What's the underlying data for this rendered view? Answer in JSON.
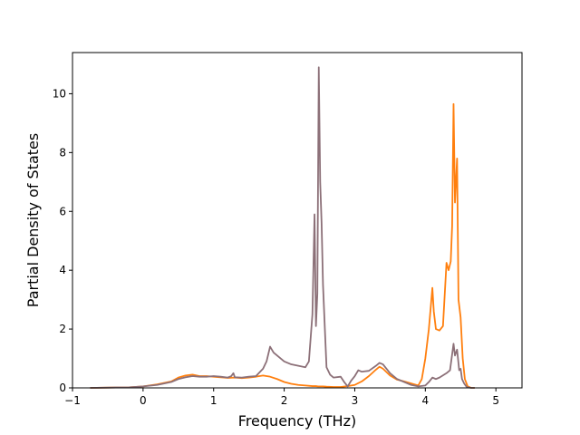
{
  "chart_data": {
    "type": "line",
    "title": "",
    "xlabel": "Frequency (THz)",
    "ylabel": "Partial Density of States",
    "xlim": [
      -1,
      5.37
    ],
    "ylim": [
      0,
      11.4
    ],
    "xticks": [
      -1,
      0,
      1,
      2,
      3,
      4,
      5
    ],
    "yticks": [
      0,
      2,
      4,
      6,
      8,
      10
    ],
    "grid": false,
    "legend": "none",
    "series": [
      {
        "color": "#ff7f0e",
        "x": [
          -0.75,
          -0.2,
          0.0,
          0.2,
          0.4,
          0.5,
          0.6,
          0.7,
          0.8,
          0.9,
          1.0,
          1.1,
          1.2,
          1.3,
          1.4,
          1.5,
          1.6,
          1.7,
          1.8,
          1.9,
          2.0,
          2.1,
          2.2,
          2.3,
          2.4,
          2.45,
          2.48,
          2.5,
          2.52,
          2.55,
          2.6,
          2.7,
          2.8,
          2.9,
          3.0,
          3.1,
          3.2,
          3.3,
          3.35,
          3.4,
          3.5,
          3.6,
          3.7,
          3.8,
          3.9,
          3.95,
          4.0,
          4.05,
          4.1,
          4.12,
          4.15,
          4.2,
          4.25,
          4.3,
          4.33,
          4.36,
          4.38,
          4.4,
          4.42,
          4.45,
          4.47,
          4.5,
          4.53,
          4.56,
          4.6,
          4.65,
          4.7
        ],
        "y": [
          0.0,
          0.02,
          0.05,
          0.12,
          0.22,
          0.35,
          0.42,
          0.45,
          0.4,
          0.4,
          0.38,
          0.36,
          0.34,
          0.35,
          0.33,
          0.35,
          0.38,
          0.42,
          0.38,
          0.3,
          0.2,
          0.14,
          0.1,
          0.08,
          0.06,
          0.06,
          0.05,
          0.05,
          0.05,
          0.05,
          0.04,
          0.03,
          0.03,
          0.06,
          0.1,
          0.22,
          0.4,
          0.62,
          0.72,
          0.65,
          0.42,
          0.28,
          0.22,
          0.15,
          0.08,
          0.3,
          1.0,
          2.0,
          3.4,
          2.6,
          2.0,
          1.95,
          2.1,
          4.25,
          4.0,
          4.3,
          5.5,
          9.65,
          6.3,
          7.8,
          3.0,
          2.4,
          1.0,
          0.3,
          0.05,
          0.0,
          0.0
        ]
      },
      {
        "color": "#8c7078",
        "x": [
          -0.75,
          -0.2,
          0.0,
          0.2,
          0.4,
          0.5,
          0.6,
          0.7,
          0.8,
          0.9,
          1.0,
          1.1,
          1.2,
          1.25,
          1.28,
          1.3,
          1.4,
          1.5,
          1.6,
          1.7,
          1.75,
          1.8,
          1.85,
          1.9,
          2.0,
          2.1,
          2.2,
          2.3,
          2.35,
          2.4,
          2.43,
          2.45,
          2.47,
          2.49,
          2.51,
          2.53,
          2.55,
          2.58,
          2.6,
          2.63,
          2.65,
          2.7,
          2.8,
          2.85,
          2.9,
          2.95,
          3.0,
          3.05,
          3.1,
          3.2,
          3.3,
          3.35,
          3.4,
          3.5,
          3.6,
          3.7,
          3.8,
          3.9,
          4.0,
          4.05,
          4.1,
          4.15,
          4.2,
          4.3,
          4.35,
          4.4,
          4.42,
          4.45,
          4.48,
          4.5,
          4.52,
          4.55,
          4.58,
          4.6,
          4.65,
          4.7
        ],
        "y": [
          0.0,
          0.02,
          0.05,
          0.1,
          0.2,
          0.3,
          0.36,
          0.4,
          0.38,
          0.38,
          0.4,
          0.38,
          0.35,
          0.4,
          0.5,
          0.36,
          0.35,
          0.38,
          0.4,
          0.65,
          0.9,
          1.4,
          1.2,
          1.1,
          0.9,
          0.8,
          0.75,
          0.7,
          0.9,
          2.5,
          5.9,
          2.1,
          3.2,
          10.9,
          7.0,
          5.6,
          3.5,
          1.8,
          0.7,
          0.55,
          0.45,
          0.35,
          0.38,
          0.2,
          0.05,
          0.25,
          0.4,
          0.6,
          0.55,
          0.58,
          0.75,
          0.85,
          0.8,
          0.5,
          0.3,
          0.2,
          0.1,
          0.05,
          0.08,
          0.2,
          0.35,
          0.3,
          0.35,
          0.5,
          0.6,
          1.5,
          1.1,
          1.3,
          0.6,
          0.65,
          0.3,
          0.15,
          0.05,
          0.02,
          0.0,
          0.0
        ]
      }
    ]
  }
}
